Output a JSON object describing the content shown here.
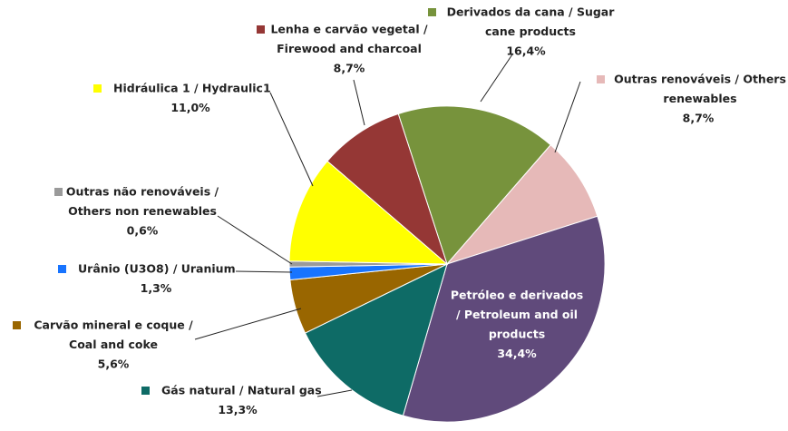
{
  "chart_data": {
    "type": "pie",
    "labels": [
      [
        "Derivados da cana / Sugar",
        "cane products"
      ],
      [
        "Outras renováveis / Others",
        "renewables"
      ],
      [
        "Petróleo e derivados",
        "/ Petroleum and oil",
        "products"
      ],
      [
        "Gás natural / Natural gas"
      ],
      [
        "Carvão mineral e coque /",
        "Coal and coke"
      ],
      [
        "Urânio (U3O8) / Uranium"
      ],
      [
        "Outras não renováveis /",
        "Others non renewables"
      ],
      [
        "Hidráulica 1 / Hydraulic1"
      ],
      [
        "Lenha e carvão vegetal /",
        "Firewood and charcoal"
      ]
    ],
    "values": [
      16.4,
      8.7,
      34.4,
      13.3,
      5.6,
      1.3,
      0.6,
      11.0,
      8.7
    ],
    "value_labels": [
      "16,4%",
      "8,7%",
      "34,4%",
      "13,3%",
      "5,6%",
      "1,3%",
      "0,6%",
      "11,0%",
      "8,7%"
    ],
    "colors": [
      "#77933c",
      "#e6b9b8",
      "#604a7b",
      "#0e6b66",
      "#996600",
      "#1874ff",
      "#9a9a9a",
      "#ffff00",
      "#953735"
    ]
  }
}
